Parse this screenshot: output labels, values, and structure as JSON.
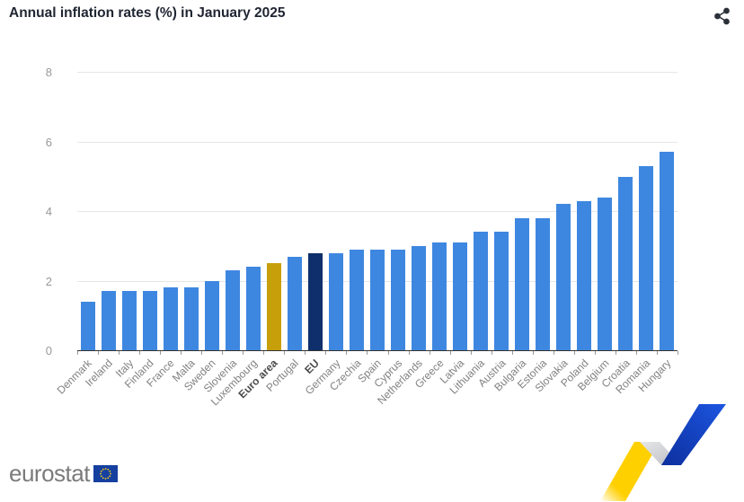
{
  "header": {
    "title": "Annual inflation rates (%) in January 2025"
  },
  "toolbar": {
    "share_icon": "share-icon"
  },
  "chart_data": {
    "type": "bar",
    "title": "Annual inflation rates (%) in January 2025",
    "categories": [
      "Denmark",
      "Ireland",
      "Italy",
      "Finland",
      "France",
      "Malta",
      "Sweden",
      "Slovenia",
      "Luxembourg",
      "Euro area",
      "Portugal",
      "EU",
      "Germany",
      "Czechia",
      "Spain",
      "Cyprus",
      "Netherlands",
      "Greece",
      "Latvia",
      "Lithuania",
      "Austria",
      "Bulgaria",
      "Estonia",
      "Slovakia",
      "Poland",
      "Belgium",
      "Croatia",
      "Romania",
      "Hungary"
    ],
    "values": [
      1.4,
      1.7,
      1.7,
      1.7,
      1.8,
      1.8,
      2.0,
      2.3,
      2.4,
      2.5,
      2.7,
      2.8,
      2.8,
      2.9,
      2.9,
      2.9,
      3.0,
      3.1,
      3.1,
      3.4,
      3.4,
      3.8,
      3.8,
      4.2,
      4.3,
      4.4,
      5.0,
      5.3,
      5.7
    ],
    "highlighted_categories": {
      "Euro area": "euro_area",
      "EU": "eu"
    },
    "bold_labels": [
      "Euro area",
      "EU"
    ],
    "colors": {
      "default": "#3e87e0",
      "euro_area": "#c79f0b",
      "eu": "#0e2f6b"
    },
    "xlabel": "",
    "ylabel": "",
    "ylim": [
      0,
      8
    ],
    "yticks": [
      0,
      2,
      4,
      6,
      8
    ],
    "grid": true,
    "legend": "none"
  },
  "footer": {
    "brand": "eurostat"
  }
}
